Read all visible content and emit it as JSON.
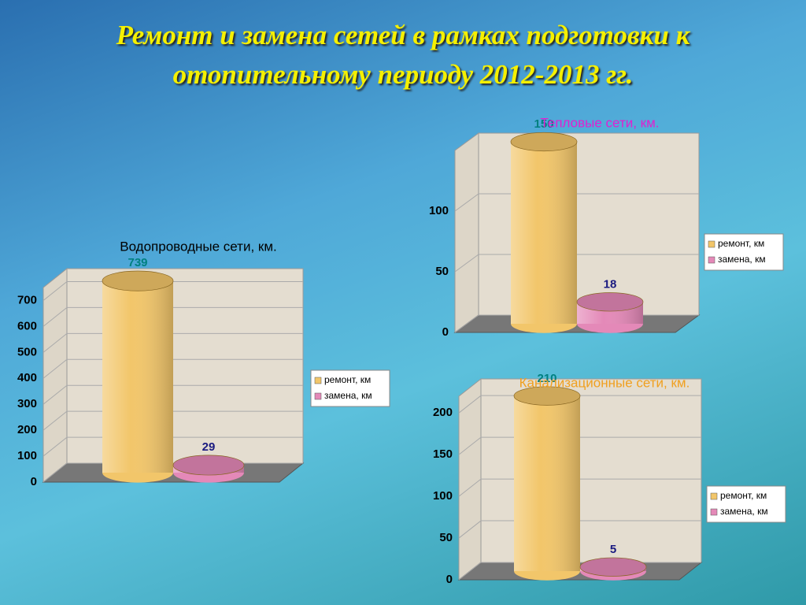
{
  "title": "Ремонт и замена сетей в рамках подготовки к отопительному периоду 2012-2013 гг.",
  "chart_data": [
    {
      "type": "bar",
      "title": "Водопроводные сети, км.",
      "title_color": "#000000",
      "series": [
        {
          "name": "ремонт, км",
          "color": "#f2c66a",
          "label_color": "#008080",
          "values": [
            739
          ]
        },
        {
          "name": "замена, км",
          "color": "#e489b8",
          "label_color": "#1a1a80",
          "values": [
            29
          ]
        }
      ],
      "ylim": [
        0,
        750
      ],
      "yticks": [
        0,
        100,
        200,
        300,
        400,
        500,
        600,
        700
      ],
      "grid": true,
      "legend": "right"
    },
    {
      "type": "bar",
      "title": "Тепловые сети, км.",
      "title_color": "#e020d0",
      "series": [
        {
          "name": "ремонт, км",
          "color": "#f2c66a",
          "label_color": "#008080",
          "values": [
            150
          ]
        },
        {
          "name": "замена, км",
          "color": "#e489b8",
          "label_color": "#1a1a80",
          "values": [
            18
          ]
        }
      ],
      "ylim": [
        0,
        150
      ],
      "yticks": [
        0,
        50,
        100
      ],
      "grid": true,
      "legend": "right"
    },
    {
      "type": "bar",
      "title": "Канализационные сети, км.",
      "title_color": "#f0a020",
      "series": [
        {
          "name": "ремонт, км",
          "color": "#f2c66a",
          "label_color": "#008080",
          "values": [
            210
          ]
        },
        {
          "name": "замена, км",
          "color": "#e489b8",
          "label_color": "#1a1a80",
          "values": [
            5
          ]
        }
      ],
      "ylim": [
        0,
        220
      ],
      "yticks": [
        0,
        50,
        100,
        150,
        200
      ],
      "grid": true,
      "legend": "right"
    }
  ]
}
